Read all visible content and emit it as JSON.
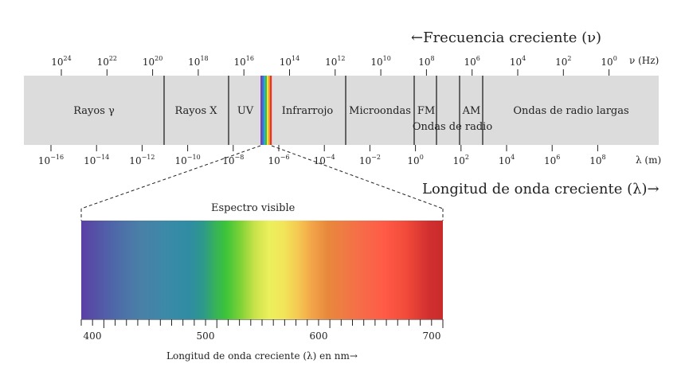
{
  "header": {
    "frequency_title": "←Frecuencia creciente (ν)",
    "wavelength_title": "Longitud de onda creciente (λ)→"
  },
  "frequency_axis": {
    "unit": "ν (Hz)",
    "ticks": [
      {
        "base": "10",
        "exp": "24"
      },
      {
        "base": "10",
        "exp": "22"
      },
      {
        "base": "10",
        "exp": "20"
      },
      {
        "base": "10",
        "exp": "18"
      },
      {
        "base": "10",
        "exp": "16"
      },
      {
        "base": "10",
        "exp": "14"
      },
      {
        "base": "10",
        "exp": "12"
      },
      {
        "base": "10",
        "exp": "10"
      },
      {
        "base": "10",
        "exp": "8"
      },
      {
        "base": "10",
        "exp": "6"
      },
      {
        "base": "10",
        "exp": "4"
      },
      {
        "base": "10",
        "exp": "2"
      },
      {
        "base": "10",
        "exp": "0"
      }
    ]
  },
  "wavelength_axis": {
    "unit": "λ (m)",
    "ticks": [
      {
        "base": "10",
        "exp": "−16"
      },
      {
        "base": "10",
        "exp": "−14"
      },
      {
        "base": "10",
        "exp": "−12"
      },
      {
        "base": "10",
        "exp": "−10"
      },
      {
        "base": "10",
        "exp": "−8"
      },
      {
        "base": "10",
        "exp": "−6"
      },
      {
        "base": "10",
        "exp": "−4"
      },
      {
        "base": "10",
        "exp": "−2"
      },
      {
        "base": "10",
        "exp": "0"
      },
      {
        "base": "10",
        "exp": "2"
      },
      {
        "base": "10",
        "exp": "4"
      },
      {
        "base": "10",
        "exp": "6"
      },
      {
        "base": "10",
        "exp": "8"
      }
    ]
  },
  "bands": [
    {
      "label": "Rayos γ"
    },
    {
      "label": "Rayos X"
    },
    {
      "label": "UV"
    },
    {
      "label": "Infrarrojo"
    },
    {
      "label": "Microondas"
    },
    {
      "label": "FM"
    },
    {
      "label": "AM"
    },
    {
      "label": "Ondas de radio"
    },
    {
      "label": "Ondas de radio largas"
    }
  ],
  "visible": {
    "title": "Espectro visible",
    "nm_labels": [
      "400",
      "500",
      "600",
      "700"
    ],
    "axis_label": "Longitud de onda creciente (λ) en nm→"
  },
  "colors": {
    "band_fill": "#dcdcdc",
    "divider": "#222222",
    "visible_slice": [
      "#7b3fb0",
      "#3b6fd0",
      "#2fa8d8",
      "#3cbf3c",
      "#f0e040",
      "#f59a2a",
      "#e83030"
    ]
  }
}
